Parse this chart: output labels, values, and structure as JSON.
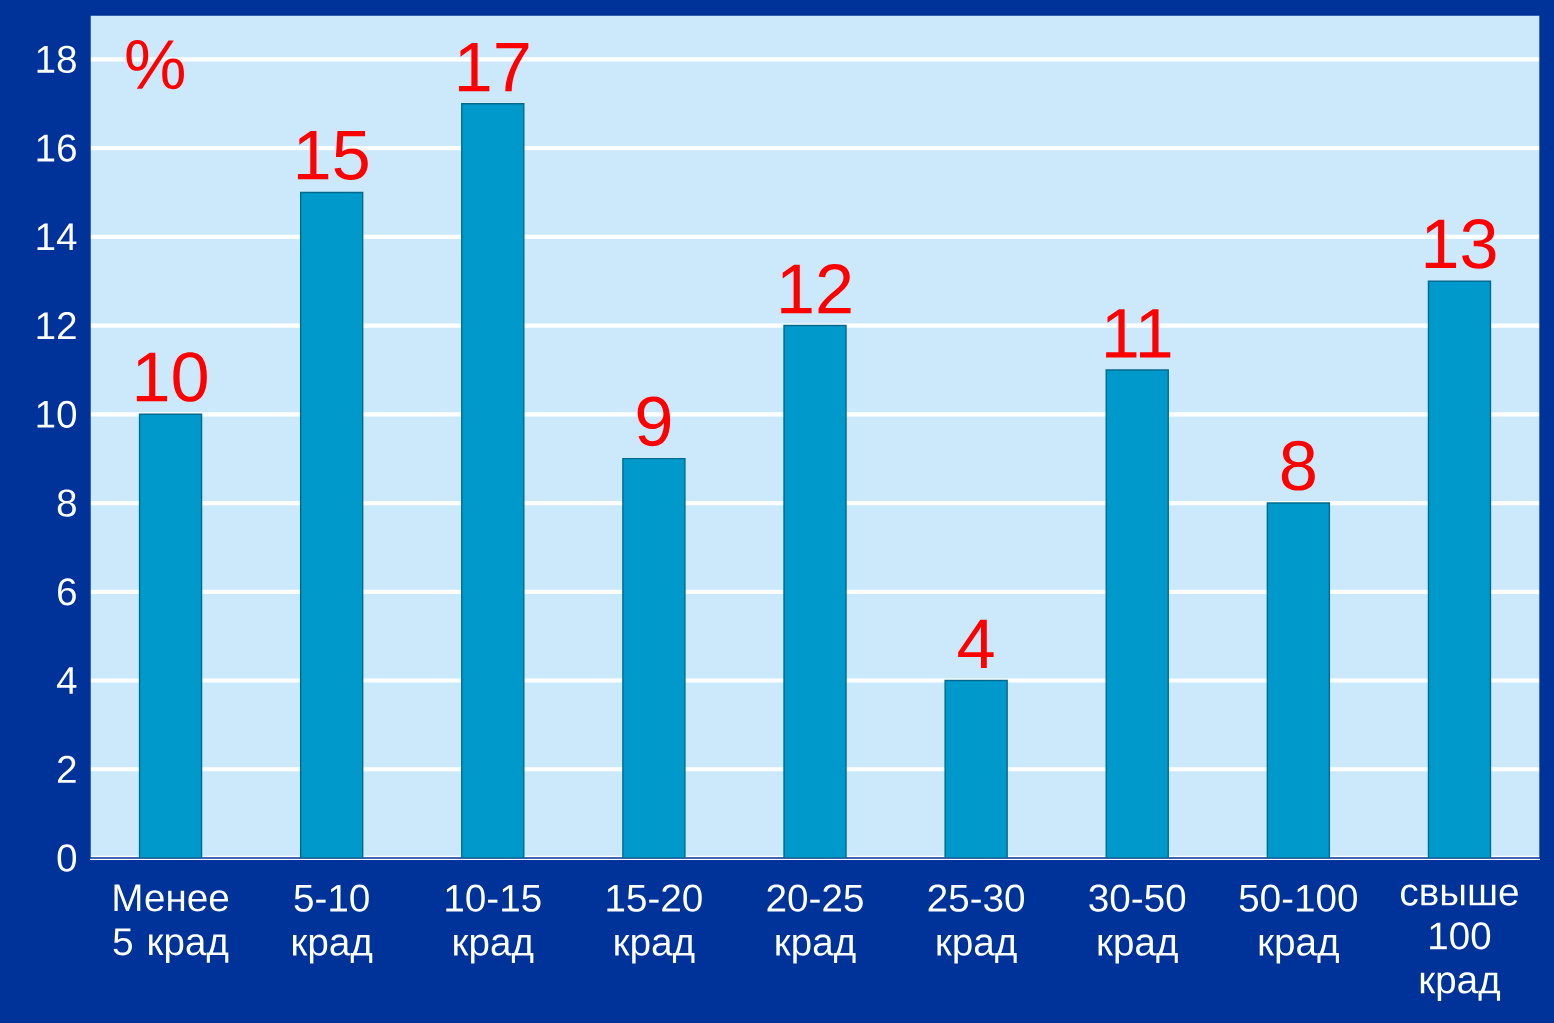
{
  "chart_data": {
    "type": "bar",
    "ylabel": "%",
    "categories": [
      "Менее 5 крад",
      "5-10 крад",
      "10-15 крад",
      "15-20 крад",
      "20-25 крад",
      "25-30 крад",
      "30-50 крад",
      "50-100 крад",
      "свыше 100 крад"
    ],
    "values": [
      10,
      15,
      17,
      9,
      12,
      4,
      11,
      8,
      13
    ],
    "color": "#0099cc",
    "ylim": [
      0,
      19
    ],
    "yticks": [
      0,
      2,
      4,
      6,
      8,
      10,
      12,
      14,
      16,
      18
    ],
    "grid": "y",
    "data_labels": true
  }
}
